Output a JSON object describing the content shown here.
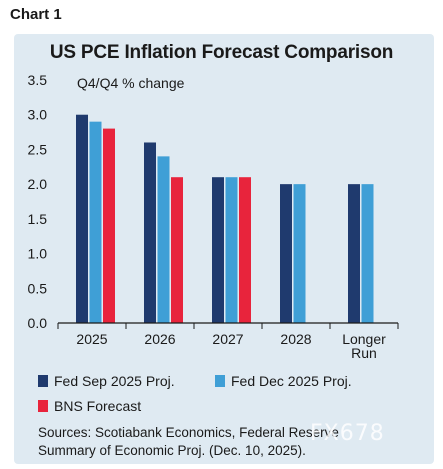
{
  "header": {
    "chart_label": "Chart 1"
  },
  "legend": [
    {
      "name": "Fed Sep 2025 Proj.",
      "color": "#1f3a6e"
    },
    {
      "name": "Fed Dec 2025 Proj.",
      "color": "#3f9fd6"
    },
    {
      "name": "BNS Forecast",
      "color": "#e8243c"
    }
  ],
  "source": {
    "line1": "Sources: Scotiabank Economics, Federal Reserve",
    "line2": "Summary of Economic Proj. (Dec. 10, 2025)."
  },
  "watermark": "FX678",
  "chart_data": {
    "type": "bar",
    "title": "US PCE Inflation Forecast Comparison",
    "ylabel": "Q4/Q4 % change",
    "xlabel": "",
    "categories": [
      "2025",
      "2026",
      "2027",
      "2028",
      "Longer Run"
    ],
    "ylim": [
      0,
      3.5
    ],
    "yticks": [
      "0.0",
      "0.5",
      "1.0",
      "1.5",
      "2.0",
      "2.5",
      "3.0",
      "3.5"
    ],
    "grid": false,
    "series": [
      {
        "name": "Fed Sep 2025 Proj.",
        "color": "#1f3a6e",
        "values": [
          3.0,
          2.6,
          2.1,
          2.0,
          2.0
        ]
      },
      {
        "name": "Fed Dec 2025 Proj.",
        "color": "#3f9fd6",
        "values": [
          2.9,
          2.4,
          2.1,
          2.0,
          2.0
        ]
      },
      {
        "name": "BNS Forecast",
        "color": "#e8243c",
        "values": [
          2.8,
          2.1,
          2.1,
          null,
          null
        ]
      }
    ]
  }
}
